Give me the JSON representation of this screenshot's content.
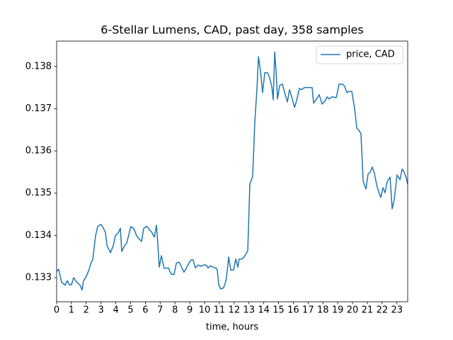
{
  "chart_data": {
    "type": "line",
    "title": "6-Stellar Lumens, CAD, past day, 358 samples",
    "xlabel": "time, hours",
    "xlim": [
      0,
      23.73
    ],
    "ylim": [
      0.13243,
      0.1386
    ],
    "xticks": [
      0,
      1,
      2,
      3,
      4,
      5,
      6,
      7,
      8,
      9,
      10,
      11,
      12,
      13,
      14,
      15,
      16,
      17,
      18,
      19,
      20,
      21,
      22,
      23
    ],
    "yticks": [
      0.133,
      0.134,
      0.135,
      0.136,
      0.137,
      0.138
    ],
    "legend": "upper right",
    "x": [
      0,
      0.14,
      0.33,
      0.57,
      0.72,
      0.86,
      1.0,
      1.15,
      1.34,
      1.58,
      1.72,
      1.82,
      2.01,
      2.2,
      2.34,
      2.44,
      2.63,
      2.78,
      3.01,
      3.16,
      3.3,
      3.4,
      3.64,
      3.83,
      3.97,
      4.16,
      4.31,
      4.4,
      4.59,
      4.74,
      4.88,
      5.02,
      5.22,
      5.41,
      5.6,
      5.74,
      5.89,
      6.08,
      6.27,
      6.46,
      6.6,
      6.75,
      6.84,
      6.94,
      7.08,
      7.27,
      7.56,
      7.75,
      7.94,
      8.09,
      8.28,
      8.42,
      8.61,
      8.76,
      8.95,
      9.09,
      9.23,
      9.38,
      9.57,
      9.76,
      9.95,
      10.1,
      10.24,
      10.38,
      10.57,
      10.77,
      10.86,
      10.96,
      11.1,
      11.29,
      11.44,
      11.53,
      11.63,
      11.77,
      11.96,
      12.11,
      12.25,
      12.34,
      12.54,
      12.73,
      12.92,
      13.06,
      13.25,
      13.4,
      13.54,
      13.64,
      13.78,
      13.92,
      14.07,
      14.26,
      14.4,
      14.55,
      14.64,
      14.74,
      14.83,
      14.93,
      15.07,
      15.26,
      15.41,
      15.6,
      15.74,
      15.93,
      16.08,
      16.22,
      16.41,
      16.56,
      16.75,
      16.94,
      17.13,
      17.27,
      17.37,
      17.56,
      17.75,
      17.94,
      18.13,
      18.28,
      18.42,
      18.61,
      18.9,
      19.09,
      19.33,
      19.47,
      19.62,
      19.76,
      19.95,
      20.14,
      20.29,
      20.43,
      20.57,
      20.72,
      20.91,
      21.05,
      21.2,
      21.34,
      21.48,
      21.63,
      21.77,
      21.91,
      22.06,
      22.2,
      22.34,
      22.54,
      22.68,
      22.82,
      23.01,
      23.21,
      23.35,
      23.49,
      23.64,
      23.73
    ],
    "series": [
      {
        "name": "price, CAD",
        "color": "#1f77b4",
        "values": [
          0.13315,
          0.1332,
          0.1329,
          0.13282,
          0.13293,
          0.13283,
          0.13283,
          0.133,
          0.1329,
          0.13282,
          0.13271,
          0.13293,
          0.13303,
          0.1332,
          0.13337,
          0.13342,
          0.13399,
          0.13422,
          0.13426,
          0.13417,
          0.13407,
          0.13376,
          0.13359,
          0.13376,
          0.13399,
          0.13406,
          0.13417,
          0.13362,
          0.13376,
          0.13382,
          0.13402,
          0.13421,
          0.13416,
          0.13399,
          0.13391,
          0.13386,
          0.13417,
          0.13422,
          0.13414,
          0.13406,
          0.13396,
          0.13424,
          0.13379,
          0.13325,
          0.13352,
          0.13322,
          0.13323,
          0.13308,
          0.13308,
          0.13334,
          0.13337,
          0.13327,
          0.13313,
          0.13322,
          0.13335,
          0.13342,
          0.13342,
          0.13323,
          0.1333,
          0.13327,
          0.1333,
          0.1333,
          0.13323,
          0.13328,
          0.13325,
          0.13323,
          0.13318,
          0.13283,
          0.13273,
          0.13276,
          0.13292,
          0.13315,
          0.13349,
          0.13318,
          0.13318,
          0.13344,
          0.13325,
          0.13344,
          0.13344,
          0.13352,
          0.13364,
          0.13521,
          0.1354,
          0.13672,
          0.13746,
          0.13823,
          0.1379,
          0.13738,
          0.13785,
          0.13785,
          0.13773,
          0.13751,
          0.13721,
          0.13834,
          0.1379,
          0.13723,
          0.13755,
          0.13758,
          0.13738,
          0.13716,
          0.13745,
          0.13723,
          0.13703,
          0.13719,
          0.13748,
          0.13745,
          0.1375,
          0.1375,
          0.1375,
          0.1375,
          0.13713,
          0.13723,
          0.13733,
          0.13711,
          0.13718,
          0.13728,
          0.13723,
          0.13728,
          0.13726,
          0.13758,
          0.13758,
          0.13753,
          0.13738,
          0.13741,
          0.13741,
          0.13701,
          0.13654,
          0.13649,
          0.13641,
          0.13528,
          0.1351,
          0.13545,
          0.1355,
          0.13562,
          0.13547,
          0.1352,
          0.13503,
          0.1349,
          0.13513,
          0.13501,
          0.13527,
          0.13538,
          0.13463,
          0.13485,
          0.13543,
          0.13532,
          0.13557,
          0.1355,
          0.13535,
          0.13521
        ]
      }
    ]
  }
}
